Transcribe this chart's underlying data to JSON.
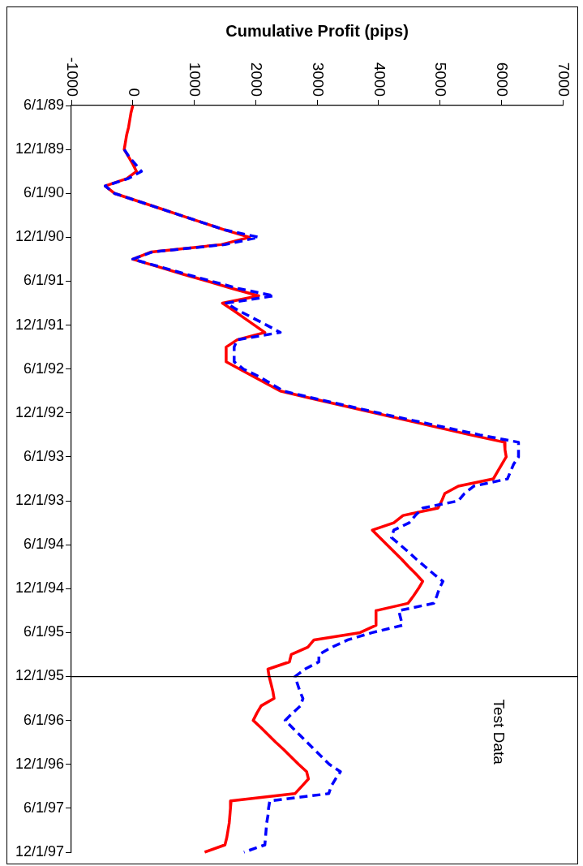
{
  "chart_data": {
    "type": "line",
    "orientation": "horizontal",
    "xlabel": "Cumulative Profit (pips)",
    "categories": [
      "6/1/89",
      null,
      null,
      null,
      null,
      null,
      "12/1/89",
      null,
      null,
      null,
      null,
      null,
      "6/1/90",
      null,
      null,
      null,
      null,
      null,
      "12/1/90",
      null,
      null,
      null,
      null,
      null,
      "6/1/91",
      null,
      null,
      null,
      null,
      null,
      "12/1/91",
      null,
      null,
      null,
      null,
      null,
      "6/1/92",
      null,
      null,
      null,
      null,
      null,
      "12/1/92",
      null,
      null,
      null,
      null,
      null,
      "6/1/93",
      null,
      null,
      null,
      null,
      null,
      "12/1/93",
      null,
      null,
      null,
      null,
      null,
      "6/1/94",
      null,
      null,
      null,
      null,
      null,
      "12/1/94",
      null,
      null,
      null,
      null,
      null,
      "6/1/95",
      null,
      null,
      null,
      null,
      null,
      "12/1/95",
      null,
      null,
      null,
      null,
      null,
      "6/1/96",
      null,
      null,
      null,
      null,
      null,
      "12/1/96",
      null,
      null,
      null,
      null,
      null,
      "6/1/97",
      null,
      null,
      null,
      null,
      null,
      "12/1/97"
    ],
    "series": [
      {
        "color": "#ff0000",
        "line_style": "solid",
        "values": [
          0,
          -30,
          -50,
          -70,
          -100,
          -120,
          -140,
          -70,
          0,
          60,
          -100,
          -450,
          -300,
          60,
          420,
          780,
          1140,
          1500,
          1900,
          1440,
          300,
          0,
          400,
          800,
          1220,
          1620,
          2050,
          1460,
          1640,
          1810,
          1980,
          2150,
          1700,
          1520,
          1520,
          1520,
          1740,
          1960,
          2180,
          2400,
          2900,
          3420,
          3940,
          4460,
          4980,
          5500,
          6050,
          6060,
          6080,
          6010,
          5940,
          5870,
          5300,
          5080,
          5030,
          4970,
          4400,
          4250,
          3900,
          4020,
          4140,
          4260,
          4380,
          4490,
          4610,
          4720,
          4650,
          4570,
          4480,
          3960,
          3960,
          3960,
          3700,
          2950,
          2850,
          2580,
          2550,
          2200,
          2220,
          2250,
          2280,
          2300,
          2090,
          2020,
          1960,
          2090,
          2210,
          2330,
          2460,
          2580,
          2700,
          2830,
          2860,
          2750,
          2640,
          1600,
          1590,
          1580,
          1570,
          1550,
          1530,
          1500,
          1170
        ]
      },
      {
        "color": "#0000ff",
        "line_style": "dashed",
        "values": [
          null,
          null,
          null,
          null,
          null,
          null,
          -140,
          -60,
          40,
          140,
          -80,
          -450,
          -300,
          60,
          420,
          780,
          1140,
          1500,
          2050,
          1500,
          320,
          0,
          430,
          850,
          1280,
          1720,
          2300,
          1520,
          1720,
          1950,
          2180,
          2400,
          1700,
          1650,
          1650,
          1650,
          1800,
          2050,
          2250,
          2450,
          2950,
          3480,
          4000,
          4550,
          5100,
          5650,
          6280,
          6280,
          6280,
          6200,
          6150,
          6100,
          5550,
          5400,
          5300,
          4720,
          4600,
          4500,
          4250,
          4210,
          4350,
          4490,
          4620,
          4760,
          4900,
          5050,
          4990,
          4950,
          4900,
          4330,
          4360,
          4390,
          3900,
          3500,
          3240,
          3030,
          3030,
          2800,
          2640,
          2680,
          2720,
          2770,
          2730,
          2600,
          2480,
          2600,
          2720,
          2840,
          2960,
          3080,
          3200,
          3380,
          3300,
          3230,
          3190,
          2230,
          2210,
          2200,
          2180,
          2170,
          2160,
          2150,
          1810
        ]
      }
    ],
    "xlim": [
      -1000,
      7000
    ],
    "xticks": [
      -1000,
      0,
      1000,
      2000,
      3000,
      4000,
      5000,
      6000,
      7000
    ],
    "ref_lines": [
      {
        "axis": "y",
        "value": "12/1/95",
        "label": "Test Data"
      }
    ],
    "marker": "none",
    "grid": false,
    "legend": false
  }
}
